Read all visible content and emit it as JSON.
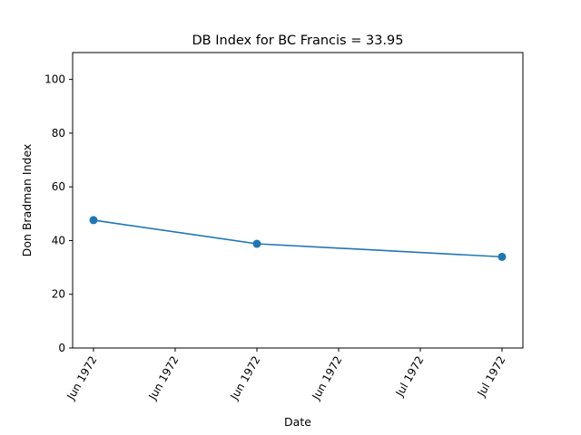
{
  "chart_data": {
    "type": "line",
    "title": "DB Index for BC Francis = 33.95",
    "xlabel": "Date",
    "ylabel": "Don Bradman Index",
    "ylim": [
      0,
      110
    ],
    "y_ticks": [
      0,
      20,
      40,
      60,
      80,
      100
    ],
    "x_ticks": [
      "Jun 1972",
      "Jun 1972",
      "Jun 1972",
      "Jun 1972",
      "Jul 1972",
      "Jul 1972"
    ],
    "grid": false,
    "series": [
      {
        "color": "#1f77b4",
        "points": [
          {
            "tick": 0,
            "y": 47.6
          },
          {
            "tick": 2,
            "y": 38.8
          },
          {
            "tick": 5,
            "y": 33.95
          }
        ]
      }
    ]
  }
}
